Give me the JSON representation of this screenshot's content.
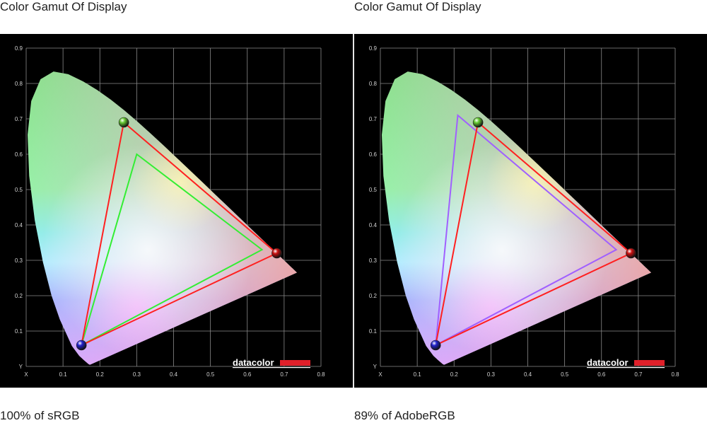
{
  "chart_data": [
    {
      "type": "scatter",
      "title": "Color Gamut Of Display",
      "caption": "100% of sRGB",
      "xlabel": "X",
      "ylabel": "Y",
      "xlim": [
        0,
        0.8
      ],
      "ylim": [
        0,
        0.9
      ],
      "xticks": [
        "0.1",
        "0.2",
        "0.3",
        "0.4",
        "0.5",
        "0.6",
        "0.7",
        "0.8"
      ],
      "yticks": [
        "0.1",
        "0.2",
        "0.3",
        "0.4",
        "0.5",
        "0.6",
        "0.7",
        "0.8",
        "0.9"
      ],
      "grid": true,
      "logo": "datacolor",
      "series": [
        {
          "points": [
            [
              0.68,
              0.32
            ],
            [
              0.265,
              0.69
            ],
            [
              0.15,
              0.06
            ]
          ],
          "color": "#ff2020"
        },
        {
          "points": [
            [
              0.64,
              0.33
            ],
            [
              0.3,
              0.6
            ],
            [
              0.15,
              0.06
            ]
          ],
          "color": "#33ee33"
        }
      ],
      "primaries": [
        {
          "x": 0.265,
          "y": 0.69,
          "color": "#66cc33"
        },
        {
          "x": 0.68,
          "y": 0.32,
          "color": "#cc1111"
        },
        {
          "x": 0.15,
          "y": 0.06,
          "color": "#2222cc"
        }
      ]
    },
    {
      "type": "scatter",
      "title": "Color Gamut Of Display",
      "caption": "89% of AdobeRGB",
      "xlabel": "X",
      "ylabel": "Y",
      "xlim": [
        0,
        0.8
      ],
      "ylim": [
        0,
        0.9
      ],
      "xticks": [
        "0.1",
        "0.2",
        "0.3",
        "0.4",
        "0.5",
        "0.6",
        "0.7",
        "0.8"
      ],
      "yticks": [
        "0.1",
        "0.2",
        "0.3",
        "0.4",
        "0.5",
        "0.6",
        "0.7",
        "0.8",
        "0.9"
      ],
      "grid": true,
      "logo": "datacolor",
      "series": [
        {
          "points": [
            [
              0.68,
              0.32
            ],
            [
              0.265,
              0.69
            ],
            [
              0.15,
              0.06
            ]
          ],
          "color": "#ff2020"
        },
        {
          "points": [
            [
              0.64,
              0.33
            ],
            [
              0.21,
              0.71
            ],
            [
              0.15,
              0.06
            ]
          ],
          "color": "#a060ff"
        }
      ],
      "primaries": [
        {
          "x": 0.265,
          "y": 0.69,
          "color": "#66cc33"
        },
        {
          "x": 0.68,
          "y": 0.32,
          "color": "#cc1111"
        },
        {
          "x": 0.15,
          "y": 0.06,
          "color": "#2222cc"
        }
      ]
    }
  ]
}
